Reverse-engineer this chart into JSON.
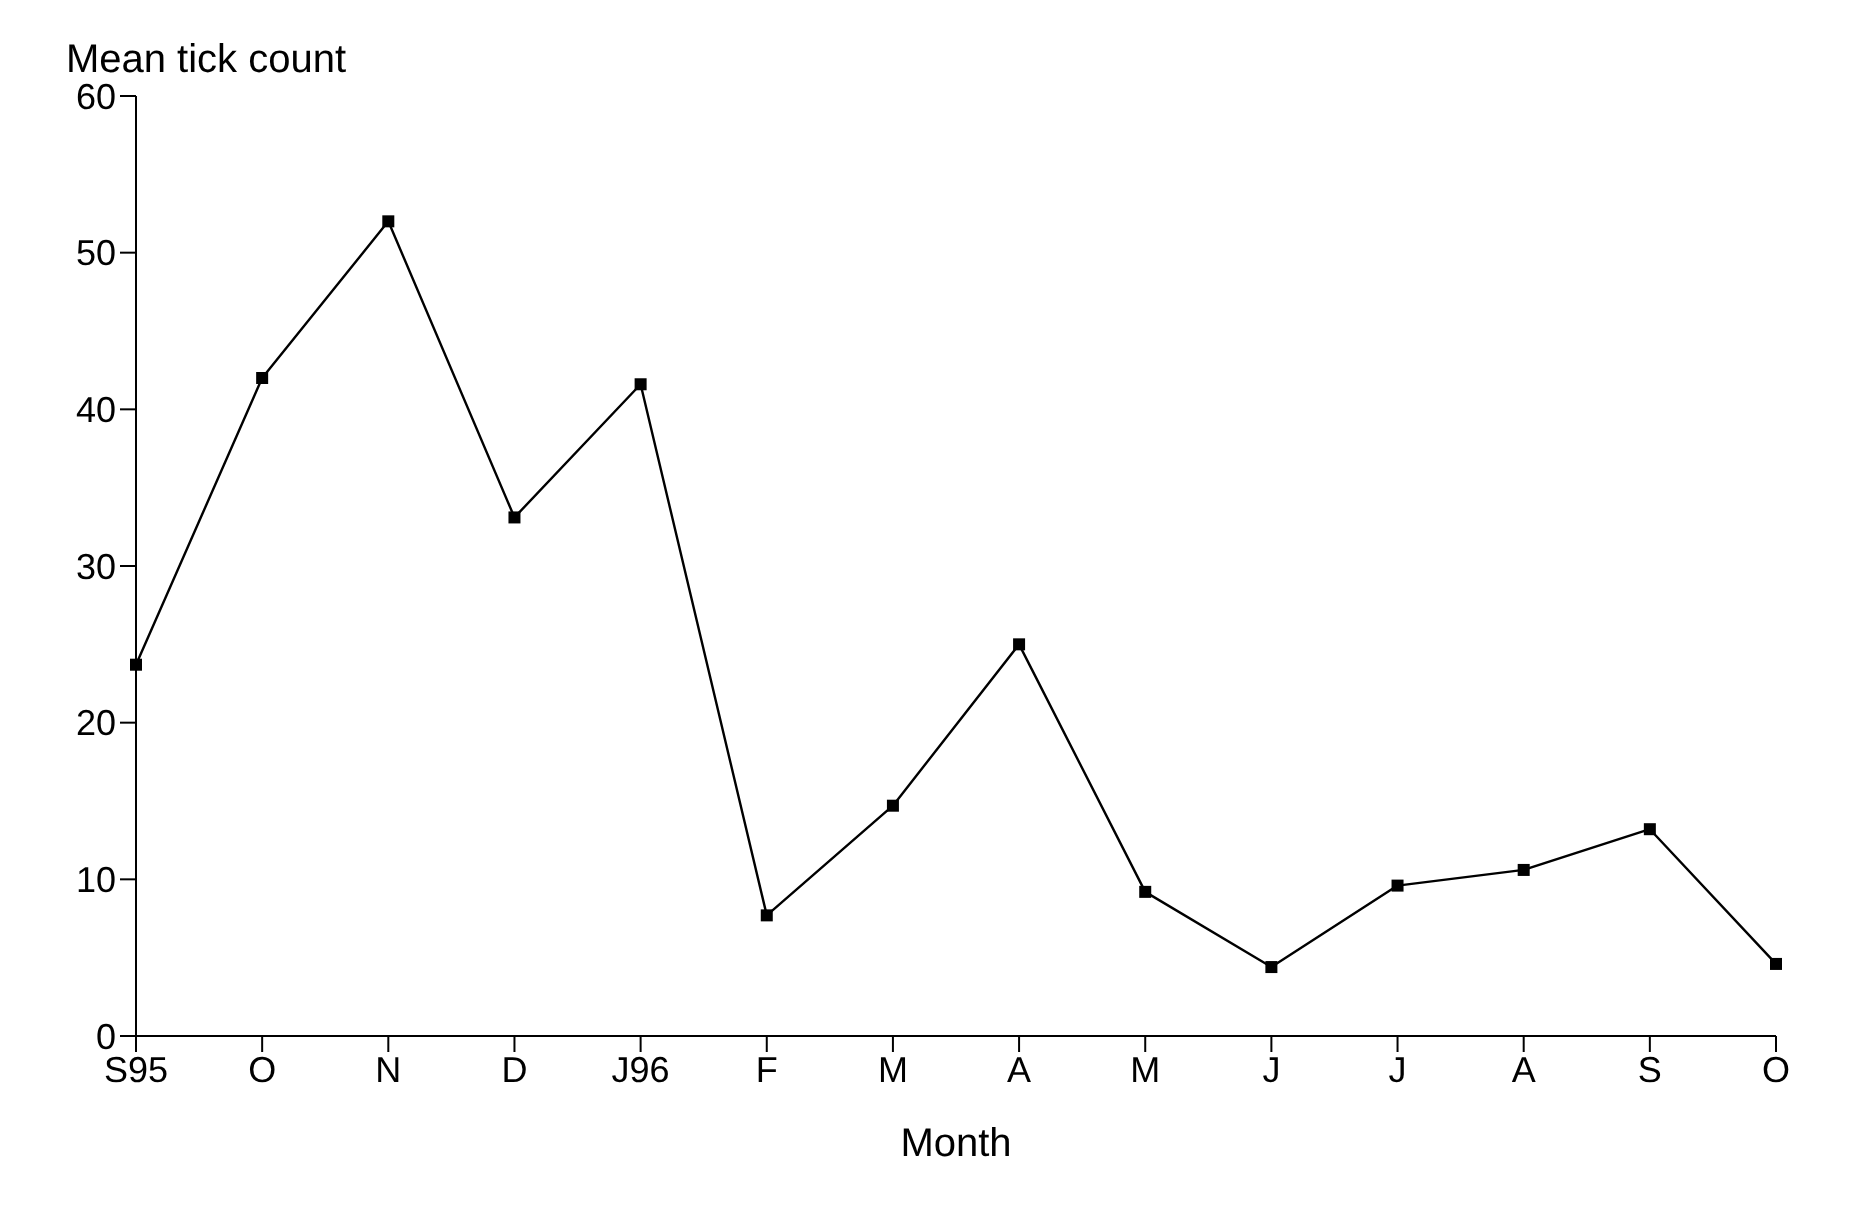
{
  "chart_data": {
    "type": "line",
    "ylabel": "Mean tick count",
    "xlabel": "Month",
    "categories": [
      "S95",
      "O",
      "N",
      "D",
      "J96",
      "F",
      "M",
      "A",
      "M",
      "J",
      "J",
      "A",
      "S",
      "O"
    ],
    "series": [
      {
        "color": "#000000",
        "values": [
          23.7,
          42.0,
          52.0,
          33.1,
          41.6,
          7.7,
          14.7,
          25.0,
          9.2,
          4.4,
          9.6,
          10.6,
          13.2,
          4.6
        ]
      }
    ],
    "ylim": [
      0,
      60
    ],
    "yticks": [
      0,
      10,
      20,
      30,
      40,
      50,
      60
    ],
    "grid": false,
    "marker": "square",
    "line_style": "solid"
  }
}
